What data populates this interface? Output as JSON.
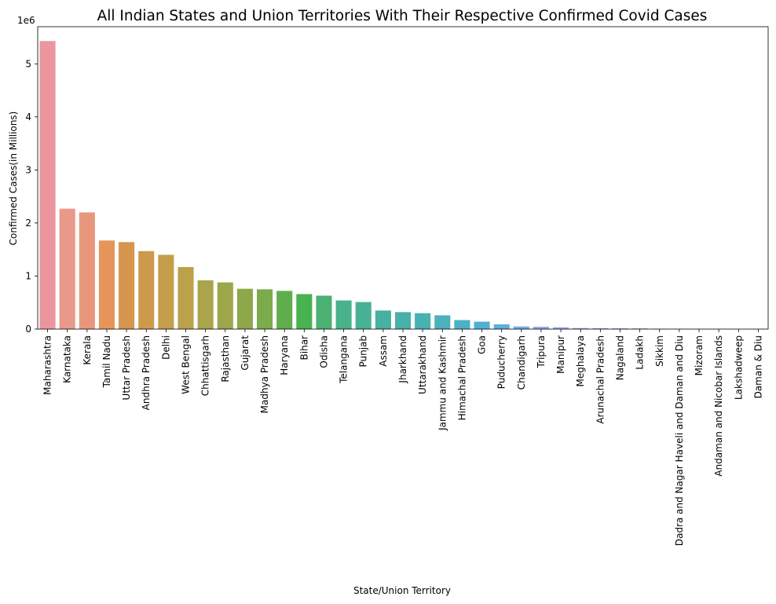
{
  "chart_data": {
    "type": "bar",
    "title": "All Indian States and Union Territories With Their Respective Confirmed Covid Cases",
    "xlabel": "State/Union Territory",
    "ylabel": "Confirmed Cases(in Millions)",
    "y_offset_text": "1e6",
    "ylim": [
      0,
      5.7
    ],
    "yticks": [
      0,
      1,
      2,
      3,
      4,
      5
    ],
    "grid": false,
    "categories": [
      "Maharashtra",
      "Karnataka",
      "Kerala",
      "Tamil Nadu",
      "Uttar Pradesh",
      "Andhra Pradesh",
      "Delhi",
      "West Bengal",
      "Chhattisgarh",
      "Rajasthan",
      "Gujarat",
      "Madhya Pradesh",
      "Haryana",
      "Bihar",
      "Odisha",
      "Telangana",
      "Punjab",
      "Assam",
      "Jharkhand",
      "Uttarakhand",
      "Jammu and Kashmir",
      "Himachal Pradesh",
      "Goa",
      "Puducherry",
      "Chandigarh",
      "Tripura",
      "Manipur",
      "Meghalaya",
      "Arunachal Pradesh",
      "Nagaland",
      "Ladakh",
      "Sikkim",
      "Dadra and Nagar Haveli and Daman and Diu",
      "Mizoram",
      "Andaman and Nicobar Islands",
      "Lakshadweep",
      "Daman & Diu"
    ],
    "values": [
      5.43,
      2.27,
      2.2,
      1.67,
      1.64,
      1.47,
      1.4,
      1.17,
      0.92,
      0.88,
      0.76,
      0.75,
      0.72,
      0.66,
      0.63,
      0.54,
      0.51,
      0.35,
      0.32,
      0.3,
      0.26,
      0.17,
      0.14,
      0.09,
      0.05,
      0.045,
      0.035,
      0.02,
      0.018,
      0.015,
      0.013,
      0.008,
      0.006,
      0.005,
      0.003,
      0.002,
      0.001
    ],
    "colors": [
      "#eb969f",
      "#e9998a",
      "#e8977c",
      "#e6955a",
      "#d6954d",
      "#cd9a4c",
      "#c49e4b",
      "#baa14a",
      "#aaa44b",
      "#9da64b",
      "#8ea74a",
      "#7cab4b",
      "#5fae4b",
      "#47b24e",
      "#4bb174",
      "#48b28a",
      "#47b196",
      "#46b0a1",
      "#48b0a9",
      "#48b1b2",
      "#4cb1bc",
      "#4cb0c7",
      "#51b0d1",
      "#5ab0df",
      "#6faeea",
      "#90a9ee",
      "#a3a2ee",
      "#b39bee",
      "#c494ee",
      "#d28dec",
      "#dd89e5",
      "#e487de",
      "#e88ad3",
      "#ea8dc8",
      "#eb8fbe",
      "#ec91b4",
      "#ec93a8"
    ]
  }
}
